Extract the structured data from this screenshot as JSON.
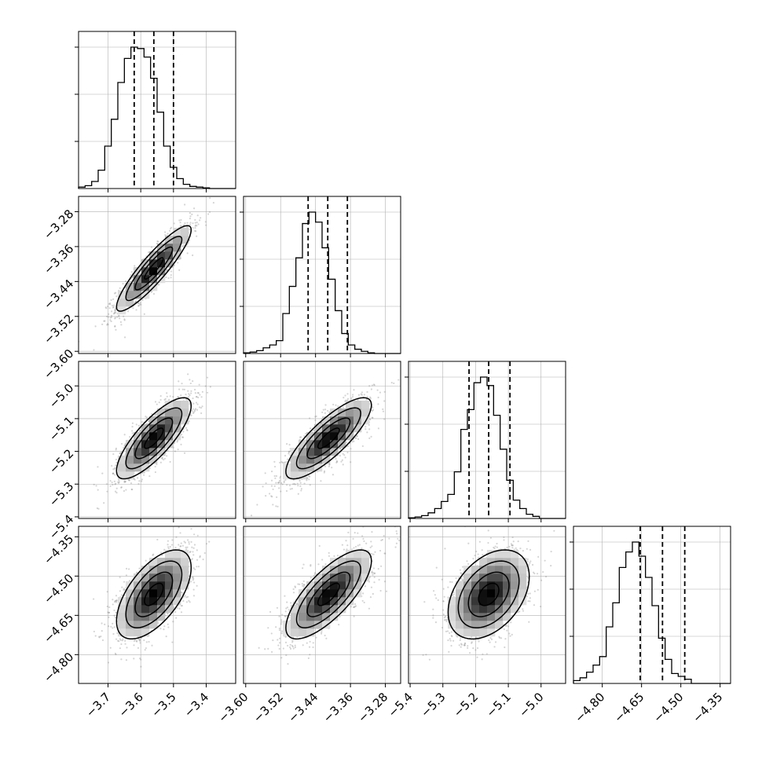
{
  "chart_data": {
    "type": "corner",
    "n_params": 4,
    "title": "",
    "params": [
      {
        "range": [
          -3.79,
          -3.31
        ],
        "ticks": [
          -3.7,
          -3.6,
          -3.5,
          -3.4
        ],
        "tick_labels": [
          "−3.7",
          "−3.6",
          "−3.5",
          "−3.4"
        ],
        "quantiles": [
          -3.62,
          -3.56,
          -3.5
        ],
        "histogram": {
          "bin_start": -3.79,
          "bin_width": 0.02,
          "counts": [
            1,
            2,
            5,
            13,
            30,
            49,
            75,
            92,
            100,
            99,
            93,
            78,
            54,
            30,
            15,
            7,
            3,
            1.5,
            1,
            0.5,
            0,
            0,
            0,
            0
          ]
        }
      },
      {
        "range": [
          -3.605,
          -3.245
        ],
        "ticks": [
          -3.6,
          -3.52,
          -3.44,
          -3.36,
          -3.28
        ],
        "tick_labels": [
          "−3.60",
          "−3.52",
          "−3.44",
          "−3.36",
          "−3.28"
        ],
        "quantiles": [
          -3.457,
          -3.412,
          -3.367
        ],
        "histogram": {
          "bin_start": -3.605,
          "bin_width": 0.015,
          "counts": [
            0.5,
            1,
            2,
            4,
            6,
            9,
            28,
            47,
            67,
            91,
            99,
            92,
            74,
            52,
            30,
            14,
            6,
            3,
            1.5,
            0.5,
            0,
            0,
            0,
            0
          ]
        }
      },
      {
        "range": [
          -5.405,
          -4.925
        ],
        "ticks": [
          -5.4,
          -5.3,
          -5.2,
          -5.1,
          -5.0
        ],
        "tick_labels": [
          "−5.4",
          "−5.3",
          "−5.2",
          "−5.1",
          "−5.0"
        ],
        "quantiles": [
          -5.22,
          -5.16,
          -5.095
        ],
        "histogram": {
          "bin_start": -5.405,
          "bin_width": 0.02,
          "counts": [
            0.5,
            1,
            2,
            4,
            7,
            12,
            17,
            33,
            63,
            77,
            96,
            100,
            94,
            73,
            49,
            27,
            13,
            7,
            3,
            1.5,
            0,
            0,
            0,
            0
          ]
        }
      },
      {
        "range": [
          -4.91,
          -4.31
        ],
        "ticks": [
          -4.8,
          -4.65,
          -4.5,
          -4.35
        ],
        "tick_labels": [
          "−4.80",
          "−4.65",
          "−4.50",
          "−4.35"
        ],
        "quantiles": [
          -4.655,
          -4.57,
          -4.485
        ],
        "histogram": {
          "bin_start": -4.91,
          "bin_width": 0.025,
          "counts": [
            2,
            4,
            8,
            13,
            19,
            40,
            57,
            82,
            93,
            100,
            90,
            75,
            55,
            32,
            17,
            7,
            5,
            3,
            0,
            0,
            0,
            0,
            0,
            0
          ]
        }
      }
    ],
    "pairs": [
      {
        "x": 0,
        "y": 1,
        "mean_x": -3.56,
        "mean_y": -3.41,
        "sd_x": 0.057,
        "sd_y": 0.049,
        "rho": 0.9
      },
      {
        "x": 0,
        "y": 2,
        "mean_x": -3.56,
        "mean_y": -5.16,
        "sd_x": 0.057,
        "sd_y": 0.062,
        "rho": 0.8
      },
      {
        "x": 1,
        "y": 2,
        "mean_x": -3.41,
        "mean_y": -5.16,
        "sd_x": 0.049,
        "sd_y": 0.062,
        "rho": 0.82
      },
      {
        "x": 0,
        "y": 3,
        "mean_x": -3.56,
        "mean_y": -4.57,
        "sd_x": 0.057,
        "sd_y": 0.085,
        "rho": 0.6
      },
      {
        "x": 1,
        "y": 3,
        "mean_x": -3.41,
        "mean_y": -4.57,
        "sd_x": 0.049,
        "sd_y": 0.085,
        "rho": 0.75
      },
      {
        "x": 2,
        "y": 3,
        "mean_x": -5.16,
        "mean_y": -4.57,
        "sd_x": 0.062,
        "sd_y": 0.085,
        "rho": 0.4
      }
    ],
    "contour_levels_sigma": [
      0.5,
      1.0,
      1.5,
      2.0
    ],
    "grid": true,
    "colors": {
      "line": "#000000",
      "grid": "#b0b0b0",
      "density": "#000000"
    }
  }
}
